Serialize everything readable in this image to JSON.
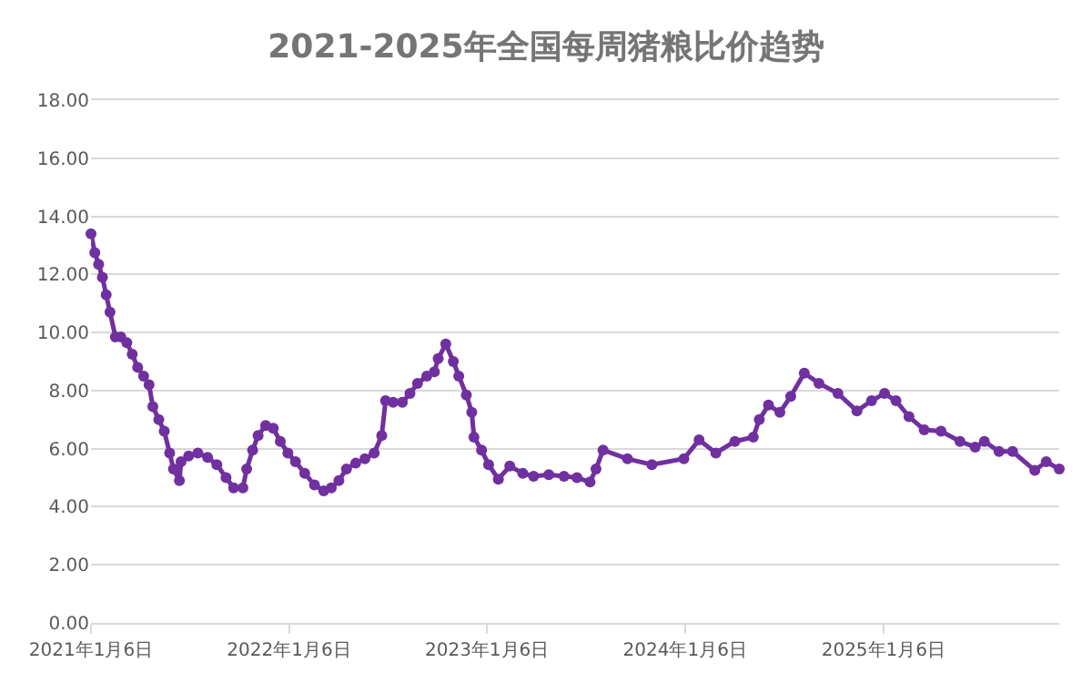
{
  "chart_data": {
    "type": "line",
    "title": "2021-2025年全国每周猪粮比价趋势",
    "x": [
      "2021-01-06",
      "2021-01-13",
      "2021-01-20",
      "2021-01-27",
      "2021-02-03",
      "2021-02-10",
      "2021-02-20",
      "2021-03-02",
      "2021-03-13",
      "2021-03-23",
      "2021-04-02",
      "2021-04-13",
      "2021-04-23",
      "2021-04-30",
      "2021-05-11",
      "2021-05-21",
      "2021-05-31",
      "2021-06-07",
      "2021-06-18",
      "2021-06-21",
      "2021-07-05",
      "2021-07-22",
      "2021-08-09",
      "2021-08-26",
      "2021-09-12",
      "2021-09-26",
      "2021-10-13",
      "2021-10-20",
      "2021-10-31",
      "2021-11-10",
      "2021-11-24",
      "2021-12-08",
      "2021-12-21",
      "2022-01-04",
      "2022-01-18",
      "2022-02-04",
      "2022-02-22",
      "2022-03-11",
      "2022-03-25",
      "2022-04-08",
      "2022-04-22",
      "2022-05-09",
      "2022-05-26",
      "2022-06-12",
      "2022-06-26",
      "2022-07-03",
      "2022-07-17",
      "2022-08-03",
      "2022-08-17",
      "2022-08-31",
      "2022-09-17",
      "2022-10-01",
      "2022-10-08",
      "2022-10-22",
      "2022-11-05",
      "2022-11-15",
      "2022-11-29",
      "2022-12-09",
      "2022-12-13",
      "2022-12-27",
      "2023-01-09",
      "2023-01-27",
      "2023-02-17",
      "2023-03-13",
      "2023-04-02",
      "2023-04-30",
      "2023-05-28",
      "2023-06-21",
      "2023-07-15",
      "2023-07-26",
      "2023-08-08",
      "2023-09-22",
      "2023-11-06",
      "2024-01-04",
      "2024-02-01",
      "2024-03-03",
      "2024-04-07",
      "2024-05-11",
      "2024-05-22",
      "2024-06-08",
      "2024-06-29",
      "2024-07-19",
      "2024-08-13",
      "2024-09-09",
      "2024-10-14",
      "2024-11-18",
      "2024-12-15",
      "2025-01-08",
      "2025-01-29",
      "2025-02-22",
      "2025-03-22",
      "2025-04-22",
      "2025-05-27",
      "2025-06-24",
      "2025-07-11",
      "2025-08-07",
      "2025-09-01",
      "2025-10-12",
      "2025-11-02",
      "2025-11-26"
    ],
    "series": [
      {
        "color": "#7030a0",
        "values": [
          13.4,
          12.75,
          12.35,
          11.9,
          11.3,
          10.7,
          9.85,
          9.85,
          9.65,
          9.25,
          8.8,
          8.5,
          8.2,
          7.45,
          7.0,
          6.6,
          5.85,
          5.3,
          4.9,
          5.55,
          5.75,
          5.85,
          5.7,
          5.45,
          5.0,
          4.65,
          4.65,
          5.3,
          5.95,
          6.45,
          6.8,
          6.7,
          6.25,
          5.85,
          5.55,
          5.15,
          4.75,
          4.55,
          4.65,
          4.9,
          5.3,
          5.5,
          5.65,
          5.85,
          6.45,
          7.65,
          7.6,
          7.6,
          7.9,
          8.25,
          8.5,
          8.65,
          9.1,
          9.6,
          9.0,
          8.5,
          7.85,
          7.25,
          6.4,
          5.95,
          5.45,
          4.95,
          5.4,
          5.15,
          5.05,
          5.1,
          5.05,
          5.0,
          4.85,
          5.3,
          5.95,
          5.65,
          5.45,
          5.65,
          6.3,
          5.85,
          6.25,
          6.4,
          7.0,
          7.5,
          7.25,
          7.8,
          8.6,
          8.25,
          7.9,
          7.3,
          7.65,
          7.9,
          7.65,
          7.1,
          6.65,
          6.6,
          6.25,
          6.05,
          6.25,
          5.9,
          5.9,
          5.25,
          5.55,
          5.3
        ]
      }
    ],
    "xlim": [
      "2021-01-06",
      "2025-11-26"
    ],
    "xticks": [
      {
        "value": "2021-01-06",
        "label": "2021年1月6日"
      },
      {
        "value": "2022-01-06",
        "label": "2022年1月6日"
      },
      {
        "value": "2023-01-06",
        "label": "2023年1月6日"
      },
      {
        "value": "2024-01-06",
        "label": "2024年1月6日"
      },
      {
        "value": "2025-01-06",
        "label": "2025年1月6日"
      }
    ],
    "ylim": [
      0,
      18
    ],
    "yticks": [
      {
        "value": 0,
        "label": "0.00"
      },
      {
        "value": 2,
        "label": "2.00"
      },
      {
        "value": 4,
        "label": "4.00"
      },
      {
        "value": 6,
        "label": "6.00"
      },
      {
        "value": 8,
        "label": "8.00"
      },
      {
        "value": 10,
        "label": "10.00"
      },
      {
        "value": 12,
        "label": "12.00"
      },
      {
        "value": 14,
        "label": "14.00"
      },
      {
        "value": 16,
        "label": "16.00"
      },
      {
        "value": 18,
        "label": "18.00"
      }
    ],
    "grid": "y",
    "marker": "circle",
    "line_style": "solid"
  }
}
